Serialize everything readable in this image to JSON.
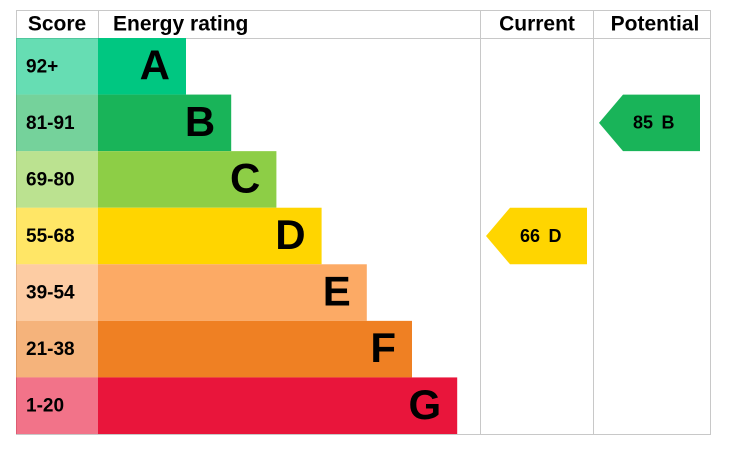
{
  "chart_data": {
    "type": "epc",
    "headers": [
      "Score",
      "Energy rating",
      "Current",
      "Potential"
    ],
    "bands": [
      {
        "score": "92+",
        "letter": "A",
        "color": "#00c781"
      },
      {
        "score": "81-91",
        "letter": "B",
        "color": "#19b459"
      },
      {
        "score": "69-80",
        "letter": "C",
        "color": "#8dce46"
      },
      {
        "score": "55-68",
        "letter": "D",
        "color": "#ffd500"
      },
      {
        "score": "39-54",
        "letter": "E",
        "color": "#fcaa65"
      },
      {
        "score": "21-38",
        "letter": "F",
        "color": "#ef8023"
      },
      {
        "score": "1-20",
        "letter": "G",
        "color": "#e9153b"
      }
    ],
    "current": {
      "value": 66,
      "band": "D"
    },
    "potential": {
      "value": 85,
      "band": "B"
    }
  }
}
